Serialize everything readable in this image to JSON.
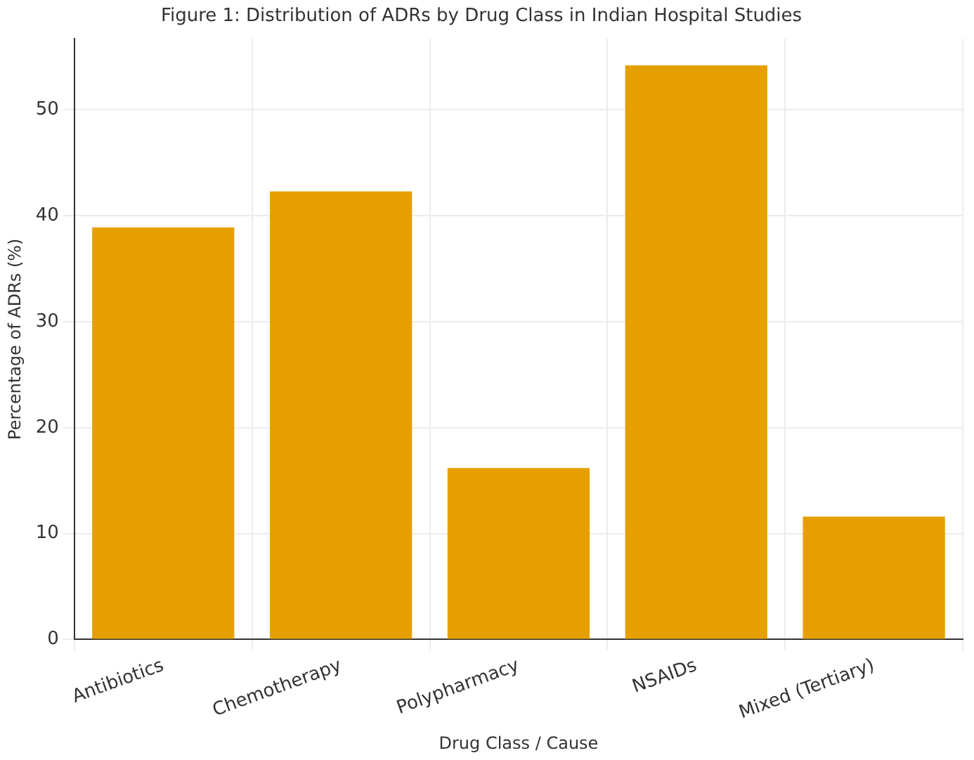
{
  "chart_data": {
    "type": "bar",
    "title": "Figure 1: Distribution of ADRs by Drug Class in Indian Hospital Studies",
    "xlabel": "Drug Class / Cause",
    "ylabel": "Percentage of ADRs (%)",
    "categories": [
      "Antibiotics",
      "Chemotherapy",
      "Polypharmacy",
      "NSAIDs",
      "Mixed (Tertiary)"
    ],
    "values": [
      38.9,
      42.3,
      16.2,
      54.2,
      11.6
    ],
    "color": "#e5a000",
    "ylim": [
      0,
      56.7
    ],
    "yticks": [
      0,
      10,
      20,
      30,
      40,
      50
    ],
    "grid": true
  }
}
